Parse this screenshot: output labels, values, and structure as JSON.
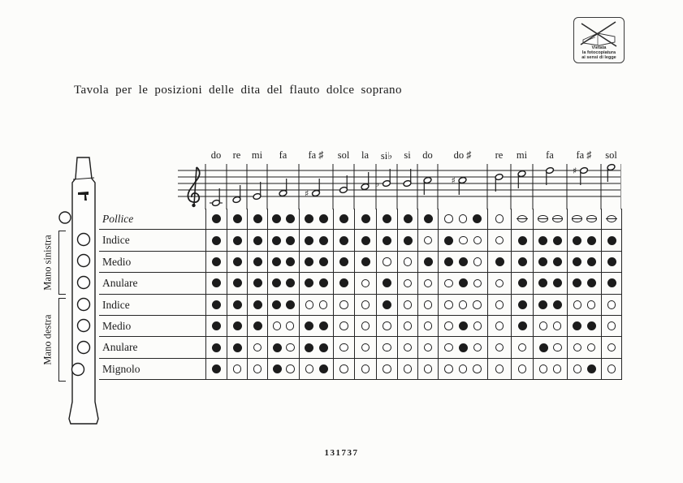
{
  "page": {
    "title": "Tavola per le posizioni delle dita del flauto dolce soprano",
    "plate_number": "131737"
  },
  "stamp": {
    "lines": [
      "Vietata",
      "la fotocopiatura",
      "ai sensi di legge"
    ],
    "icon": "crossed-out-photocopier"
  },
  "hands": {
    "left_label": "Mano sinistra",
    "right_label": "Mano destra"
  },
  "symbol_key": {
    "f": "closed-hole",
    "o": "open-hole",
    "h": "half-closed-hole"
  },
  "columns": [
    {
      "note": "do",
      "acc": null,
      "sub": 1,
      "step": -2,
      "ledger": true
    },
    {
      "note": "re",
      "acc": null,
      "sub": 1,
      "step": -1
    },
    {
      "note": "mi",
      "acc": null,
      "sub": 1,
      "step": 0
    },
    {
      "note": "fa",
      "acc": null,
      "sub": 2,
      "step": 1
    },
    {
      "note": "fa",
      "acc": "sharp",
      "sub": 2,
      "step": 1
    },
    {
      "note": "sol",
      "acc": null,
      "sub": 1,
      "step": 2
    },
    {
      "note": "la",
      "acc": null,
      "sub": 1,
      "step": 3
    },
    {
      "note": "si",
      "acc": "flat",
      "sub": 1,
      "step": 4
    },
    {
      "note": "si",
      "acc": null,
      "sub": 1,
      "step": 4
    },
    {
      "note": "do",
      "acc": null,
      "sub": 1,
      "step": 5
    },
    {
      "note": "do",
      "acc": "sharp",
      "sub": 3,
      "step": 5
    },
    {
      "note": "re",
      "acc": null,
      "sub": 1,
      "step": 6
    },
    {
      "note": "mi",
      "acc": null,
      "sub": 1,
      "step": 7
    },
    {
      "note": "fa",
      "acc": null,
      "sub": 2,
      "step": 8
    },
    {
      "note": "fa",
      "acc": "sharp",
      "sub": 2,
      "step": 8
    },
    {
      "note": "sol",
      "acc": null,
      "sub": 1,
      "step": 9
    }
  ],
  "rows": [
    {
      "label": "Pollice",
      "italic": true,
      "hand": null,
      "cells": [
        "f",
        "f",
        "f",
        "ff",
        "ff",
        "f",
        "f",
        "f",
        "f",
        "f",
        "oof",
        "o",
        "h",
        "hh",
        "hh",
        "h"
      ]
    },
    {
      "label": "Indice",
      "italic": false,
      "hand": "left",
      "cells": [
        "f",
        "f",
        "f",
        "ff",
        "ff",
        "f",
        "f",
        "f",
        "f",
        "o",
        "foo",
        "o",
        "f",
        "ff",
        "ff",
        "f"
      ]
    },
    {
      "label": "Medio",
      "italic": false,
      "hand": "left",
      "cells": [
        "f",
        "f",
        "f",
        "ff",
        "ff",
        "f",
        "f",
        "o",
        "o",
        "f",
        "ffo",
        "f",
        "f",
        "ff",
        "ff",
        "f"
      ]
    },
    {
      "label": "Anulare",
      "italic": false,
      "hand": "left",
      "cells": [
        "f",
        "f",
        "f",
        "ff",
        "ff",
        "f",
        "o",
        "f",
        "o",
        "o",
        "ofo",
        "o",
        "f",
        "ff",
        "ff",
        "f"
      ]
    },
    {
      "label": "Indice",
      "italic": false,
      "hand": "right",
      "cells": [
        "f",
        "f",
        "f",
        "ff",
        "oo",
        "o",
        "o",
        "f",
        "o",
        "o",
        "ooo",
        "o",
        "f",
        "ff",
        "oo",
        "o"
      ]
    },
    {
      "label": "Medio",
      "italic": false,
      "hand": "right",
      "cells": [
        "f",
        "f",
        "f",
        "oo",
        "ff",
        "o",
        "o",
        "o",
        "o",
        "o",
        "ofo",
        "o",
        "f",
        "oo",
        "ff",
        "o"
      ]
    },
    {
      "label": "Anulare",
      "italic": false,
      "hand": "right",
      "cells": [
        "f",
        "f",
        "o",
        "fo",
        "ff",
        "o",
        "o",
        "o",
        "o",
        "o",
        "ofo",
        "o",
        "o",
        "fo",
        "oo",
        "o"
      ]
    },
    {
      "label": "Mignolo",
      "italic": false,
      "hand": "right",
      "cells": [
        "f",
        "o",
        "o",
        "fo",
        "of",
        "o",
        "o",
        "o",
        "o",
        "o",
        "ooo",
        "o",
        "o",
        "oo",
        "of",
        "o"
      ]
    }
  ]
}
